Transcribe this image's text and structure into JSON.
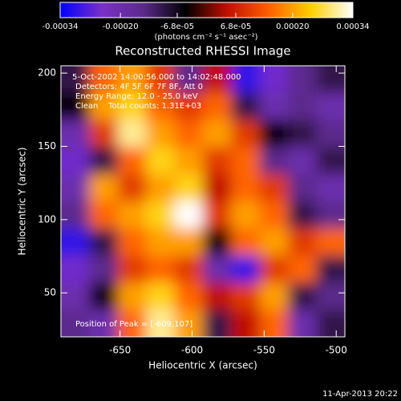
{
  "chart_data": {
    "type": "heatmap",
    "title": "Reconstructed RHESSI Image",
    "xlabel": "Heliocentric X (arcsec)",
    "ylabel": "Heliocentric Y (arcsec)",
    "xlim": [
      -691,
      -494
    ],
    "ylim": [
      20,
      205
    ],
    "xticks": [
      -650,
      -600,
      -550,
      -500
    ],
    "yticks": [
      50,
      100,
      150,
      200
    ],
    "colorbar": {
      "label": "(photons cm⁻² s⁻¹ asec⁻²)",
      "lim": [
        -0.00034,
        0.00034
      ],
      "ticks": [
        -0.00034,
        {
          "value": -0.0002,
          "label": "-0.00020"
        },
        {
          "value": -6.8e-05,
          "label": "-6.8e-05"
        },
        {
          "value": 6.8e-05,
          "label": "6.8e-05"
        },
        {
          "value": 0.0002,
          "label": "0.00020"
        },
        0.00034
      ],
      "colors": [
        "#0000ff",
        "#7a30c8",
        "#5a2a8a",
        "#000000",
        "#c01000",
        "#ff6000",
        "#ffd000",
        "#ffffff"
      ]
    },
    "annotations": [
      "5-Oct-2002 14:00:56.000 to 14:02:48.000",
      "Detectors: 4F 5F 6F 7F 8F, Att 0",
      "Energy Range: 12.0 - 25.0 keV",
      "Clean    Total counts: 1.31E+03",
      "Position of Peak = [-609,107]"
    ],
    "footer": "11-Apr-2013 20:22",
    "values": [
      [
        -0.0001,
        0.00015,
        0.0002,
        0.0001,
        -0.00015,
        5e-05,
        -0.0003,
        -0.00025,
        -0.00015,
        -0.0001
      ],
      [
        -5e-05,
        0.0002,
        0.00025,
        0.00015,
        0.0001,
        0.00015,
        -0.0001,
        -0.0002,
        -0.00015,
        -0.0002
      ],
      [
        -0.0002,
        0.0001,
        0.0003,
        0.0002,
        0.00015,
        0.0002,
        0.0001,
        -5e-05,
        -0.0001,
        -0.00015
      ],
      [
        -0.00025,
        -0.0001,
        0.00015,
        0.00025,
        0.0002,
        0.0001,
        0.00015,
        -0.00015,
        -0.0002,
        -0.0001
      ],
      [
        -0.0002,
        0.0002,
        0.0001,
        0.0002,
        0.00025,
        5e-05,
        0.00015,
        0.0001,
        -0.00015,
        -0.0002
      ],
      [
        -0.00015,
        0.00015,
        0.0002,
        0.00025,
        0.00034,
        0.0001,
        0.0002,
        0.00015,
        -0.0001,
        -0.00015
      ],
      [
        -0.0003,
        -0.0001,
        0.00015,
        0.0002,
        0.0002,
        -5e-05,
        0.00015,
        0.0002,
        0.0001,
        0.00015
      ],
      [
        -0.00025,
        -0.00015,
        0.0001,
        0.00015,
        0.0001,
        -0.0002,
        -0.0003,
        0.0001,
        0.00015,
        -0.0001
      ],
      [
        -0.0002,
        -5e-05,
        0.0002,
        0.00025,
        0.00015,
        5e-05,
        0.0001,
        0.0002,
        -0.0001,
        -0.00015
      ],
      [
        -0.00015,
        -0.0002,
        0.00015,
        0.0003,
        0.0002,
        -0.0001,
        5e-05,
        0.00015,
        -0.0002,
        -0.0001
      ]
    ]
  }
}
